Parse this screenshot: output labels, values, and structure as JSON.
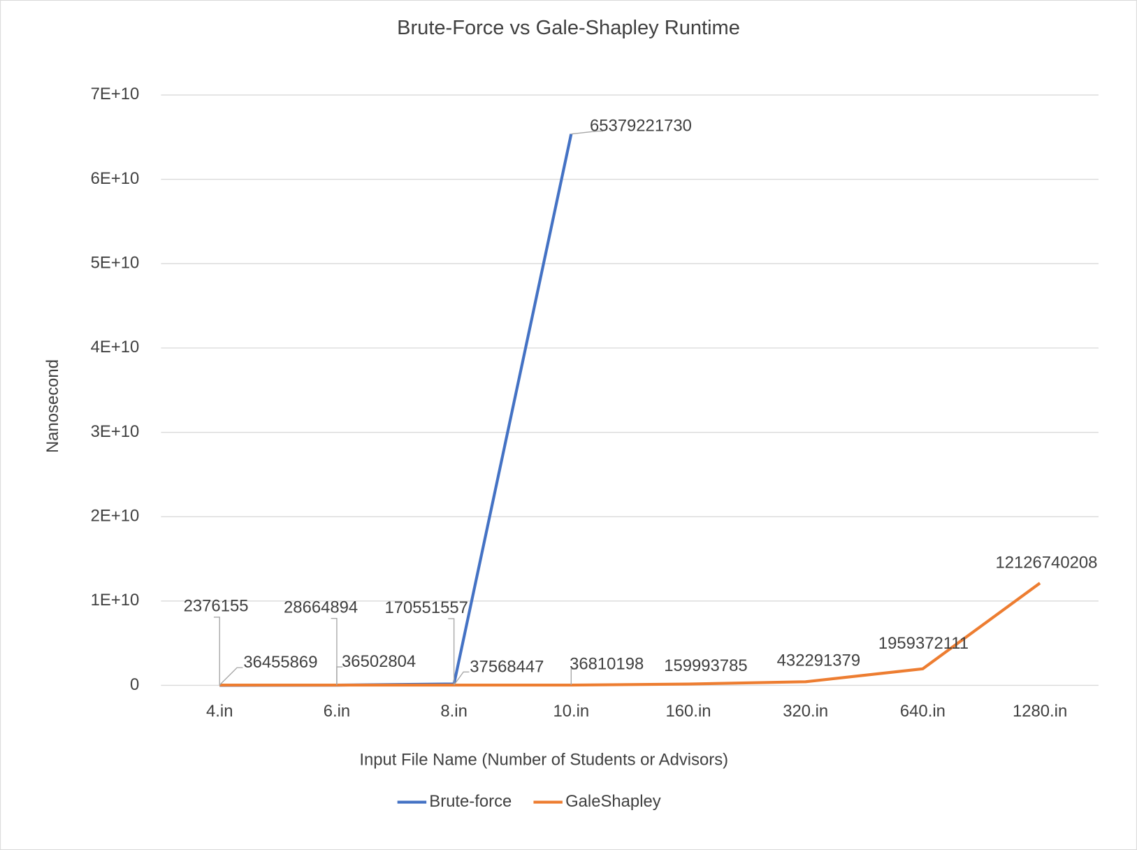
{
  "chart_data": {
    "type": "line",
    "title": "Brute-Force vs Gale-Shapley Runtime",
    "x_label": "Input File Name (Number of Students or Advisors)",
    "y_label": "Nanosecond",
    "categories": [
      "4.in",
      "6.in",
      "8.in",
      "10.in",
      "160.in",
      "320.in",
      "640.in",
      "1280.in"
    ],
    "series": [
      {
        "name": "Brute-force",
        "color": "#4472c4",
        "values": [
          2376155,
          28664894,
          170551557,
          65379221730,
          null,
          null,
          null,
          null
        ]
      },
      {
        "name": "GaleShapley",
        "color": "#ed7d31",
        "values": [
          36455869,
          36502804,
          37568447,
          36810198,
          159993785,
          432291379,
          1959372111,
          12126740208
        ]
      }
    ],
    "ylim": [
      0,
      70000000000
    ],
    "yticks": [
      0,
      {
        "value": 10000000000,
        "label": "1E+10"
      },
      {
        "value": 20000000000,
        "label": "2E+10"
      },
      {
        "value": 30000000000,
        "label": "3E+10"
      },
      {
        "value": 40000000000,
        "label": "4E+10"
      },
      {
        "value": 50000000000,
        "label": "5E+10"
      },
      {
        "value": 60000000000,
        "label": "6E+10"
      },
      {
        "value": 70000000000,
        "label": "7E+10"
      }
    ],
    "grid": true,
    "legend": "bottom"
  }
}
